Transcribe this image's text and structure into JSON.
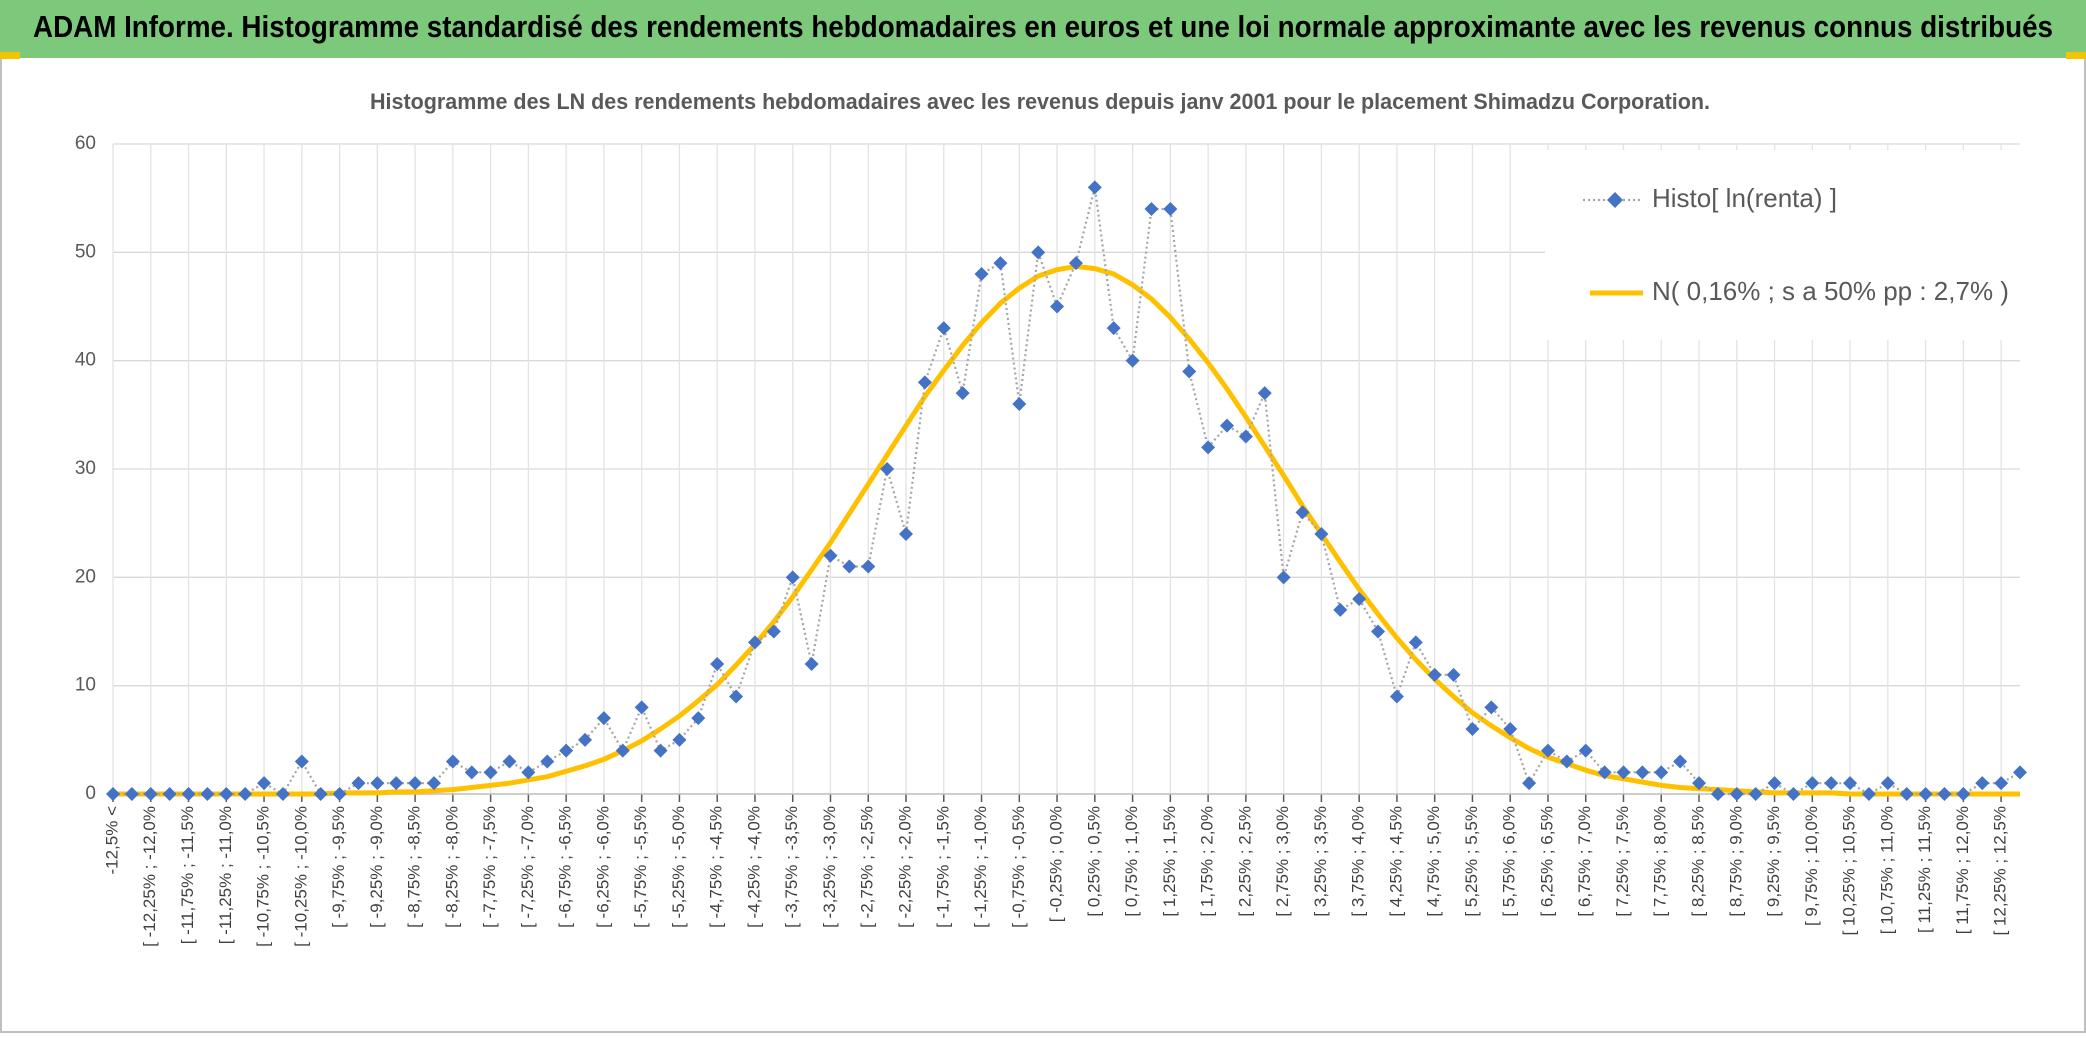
{
  "chart_data": {
    "type": "line",
    "title": "ADAM Informe. Histogramme standardisé des rendements hebdomadaires en euros et une loi normale approximante avec les revenus connus distribués",
    "subtitle": "Histogramme des LN des rendements hebdomadaires avec les revenus depuis janv 2001 pour le placement Shimadzu Corporation.",
    "categories": [
      "-12,5% <",
      null,
      "[ -12,25% ; -12,0%",
      null,
      "[ -11,75% ; -11,5%",
      null,
      "[ -11,25% ; -11,0%",
      null,
      "[ -10,75% ; -10,5%",
      null,
      "[ -10,25% ; -10,0%",
      null,
      "[ -9,75% ; -9,5%",
      null,
      "[ -9,25% ; -9,0%",
      null,
      "[ -8,75% ; -8,5%",
      null,
      "[ -8,25% ; -8,0%",
      null,
      "[ -7,75% ; -7,5%",
      null,
      "[ -7,25% ; -7,0%",
      null,
      "[ -6,75% ; -6,5%",
      null,
      "[ -6,25% ; -6,0%",
      null,
      "[ -5,75% ; -5,5%",
      null,
      "[ -5,25% ; -5,0%",
      null,
      "[ -4,75% ; -4,5%",
      null,
      "[ -4,25% ; -4,0%",
      null,
      "[ -3,75% ; -3,5%",
      null,
      "[ -3,25% ; -3,0%",
      null,
      "[ -2,75% ; -2,5%",
      null,
      "[ -2,25% ; -2,0%",
      null,
      "[ -1,75% ; -1,5%",
      null,
      "[ -1,25% ; -1,0%",
      null,
      "[ -0,75% ; -0,5%",
      null,
      "[ -0,25% ; 0,0%",
      null,
      "[ 0,25% ; 0,5%",
      null,
      "[ 0,75% ; 1,0%",
      null,
      "[ 1,25% ; 1,5%",
      null,
      "[ 1,75% ; 2,0%",
      null,
      "[ 2,25% ; 2,5%",
      null,
      "[ 2,75% ; 3,0%",
      null,
      "[ 3,25% ; 3,5%",
      null,
      "[ 3,75% ; 4,0%",
      null,
      "[ 4,25% ; 4,5%",
      null,
      "[ 4,75% ; 5,0%",
      null,
      "[ 5,25% ; 5,5%",
      null,
      "[ 5,75% ; 6,0%",
      null,
      "[ 6,25% ; 6,5%",
      null,
      "[ 6,75% ; 7,0%",
      null,
      "[ 7,25% ; 7,5%",
      null,
      "[ 7,75% ; 8,0%",
      null,
      "[ 8,25% ; 8,5%",
      null,
      "[ 8,75% ; 9,0%",
      null,
      "[ 9,25% ; 9,5%",
      null,
      "[ 9,75% ; 10,0%",
      null,
      "[ 10,25% ; 10,5%",
      null,
      "[ 10,75% ; 11,0%",
      null,
      "[ 11,25% ; 11,5%",
      null,
      "[ 11,75% ; 12,0%",
      null,
      "[ 12,25% ; 12,5%",
      null
    ],
    "series": [
      {
        "name": "Histo[ ln(renta) ]",
        "color": "#4472c4",
        "line_color": "#a5a5a5",
        "values": [
          0,
          0,
          0,
          0,
          0,
          0,
          0,
          0,
          1,
          0,
          3,
          0,
          0,
          1,
          1,
          1,
          1,
          1,
          3,
          2,
          2,
          3,
          2,
          3,
          4,
          5,
          7,
          4,
          8,
          4,
          5,
          7,
          12,
          9,
          14,
          15,
          20,
          12,
          22,
          21,
          21,
          30,
          24,
          38,
          43,
          37,
          48,
          49,
          36,
          50,
          45,
          49,
          56,
          43,
          40,
          54,
          54,
          39,
          32,
          34,
          33,
          37,
          20,
          26,
          24,
          17,
          18,
          15,
          9,
          14,
          11,
          11,
          6,
          8,
          6,
          1,
          4,
          3,
          4,
          2,
          2,
          2,
          2,
          3,
          1,
          0,
          0,
          0,
          1,
          0,
          1,
          1,
          1,
          0,
          1,
          0,
          0,
          0,
          0,
          1,
          1,
          2
        ]
      },
      {
        "name": "N( 0,16% ; s a 50% pp : 2,7% )",
        "color": "#ffc000",
        "values": [
          0,
          0,
          0,
          0,
          0,
          0,
          0,
          0,
          0,
          0,
          0,
          0,
          0.1,
          0.1,
          0.1,
          0.2,
          0.2,
          0.3,
          0.4,
          0.6,
          0.8,
          1.0,
          1.3,
          1.6,
          2.1,
          2.6,
          3.2,
          4.0,
          4.9,
          6.0,
          7.2,
          8.6,
          10.1,
          11.9,
          13.8,
          15.9,
          18.2,
          20.7,
          23.2,
          25.9,
          28.6,
          31.3,
          34.0,
          36.7,
          39.1,
          41.4,
          43.5,
          45.3,
          46.7,
          47.8,
          48.4,
          48.7,
          48.5,
          48.0,
          47.0,
          45.7,
          44.0,
          42.0,
          39.8,
          37.4,
          34.8,
          32.1,
          29.4,
          26.6,
          24.0,
          21.4,
          18.9,
          16.6,
          14.4,
          12.4,
          10.6,
          9.0,
          7.5,
          6.3,
          5.2,
          4.2,
          3.4,
          2.8,
          2.2,
          1.7,
          1.4,
          1.1,
          0.8,
          0.6,
          0.5,
          0.4,
          0.3,
          0.2,
          0.1,
          0.1,
          0.1,
          0.1,
          0,
          0,
          0,
          0,
          0,
          0,
          0,
          0,
          0,
          0
        ]
      }
    ],
    "ylim": [
      0,
      60
    ],
    "yticks": [
      0,
      10,
      20,
      30,
      40,
      50,
      60
    ],
    "grid": true,
    "legend": "top-right"
  }
}
